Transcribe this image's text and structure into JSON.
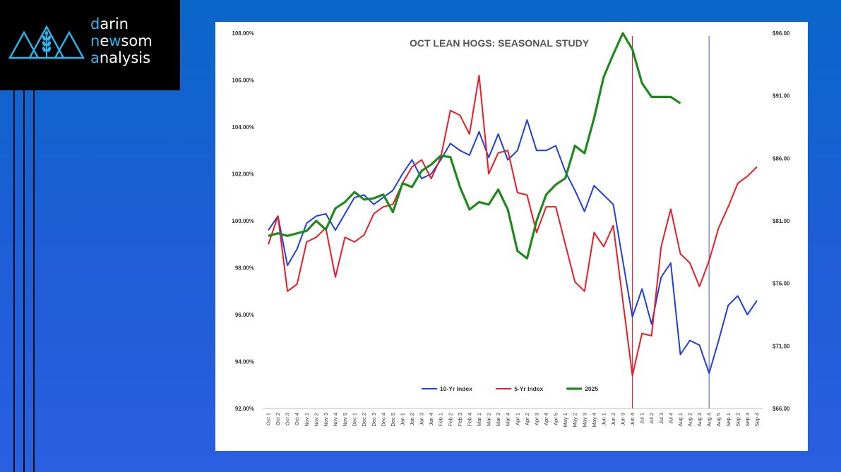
{
  "brand": {
    "line1_accent": "d",
    "line1_rest": "arin",
    "line2_accent1": "n",
    "line2_mid": "e",
    "line2_accent2": "w",
    "line2_rest": "som",
    "line3_accent": "a",
    "line3_rest": "nalysis",
    "accent_color": "#2bb7f0"
  },
  "chart_data": {
    "type": "line",
    "title": "OCT LEAN HOGS: SEASONAL STUDY",
    "xlabel": "",
    "ylabel": "",
    "ylim": [
      92,
      108
    ],
    "y2lim": [
      66,
      96
    ],
    "yticks": [
      "92.00%",
      "94.00%",
      "96.00%",
      "98.00%",
      "100.00%",
      "102.00%",
      "104.00%",
      "106.00%",
      "108.00%"
    ],
    "y2ticks": [
      "$66.00",
      "$71.00",
      "$76.00",
      "$81.00",
      "$86.00",
      "$91.00",
      "$96.00"
    ],
    "grid": false,
    "legend_position": "bottom",
    "categories": [
      "Oct 1",
      "Oct 2",
      "Oct 3",
      "Oct 4",
      "Nov 1",
      "Nov 2",
      "Nov 3",
      "Nov 4",
      "Nov 5",
      "Dec 1",
      "Dec 2",
      "Dec 3",
      "Dec 4",
      "Dec 5",
      "Jan 1",
      "Jan 2",
      "Jan 3",
      "Jan 4",
      "Feb 1",
      "Feb 2",
      "Feb 3",
      "Feb 4",
      "Mar 1",
      "Mar 2",
      "Mar 3",
      "Mar 4",
      "Apr 1",
      "Apr 2",
      "Apr 3",
      "Apr 4",
      "Apr 5",
      "May 1",
      "May 2",
      "May 3",
      "May 4",
      "Jun 1",
      "Jun 2",
      "Jun 3",
      "Jun 4",
      "Jul 1",
      "Jul 2",
      "Jul 3",
      "Jul 4",
      "Aug 1",
      "Aug 2",
      "Aug 3",
      "Aug 4",
      "Aug 5",
      "Sep 1",
      "Sep 2",
      "Sep 3",
      "Sep 4"
    ],
    "series": [
      {
        "name": "10-Yr Index",
        "axis": "left",
        "color": "#1f3fe0",
        "values": [
          99.6,
          100.2,
          98.1,
          98.8,
          99.9,
          100.2,
          100.3,
          99.6,
          100.3,
          101.0,
          101.1,
          100.7,
          101.0,
          101.3,
          102.0,
          102.6,
          101.8,
          102.0,
          102.6,
          103.3,
          103.0,
          102.8,
          103.8,
          102.7,
          103.7,
          102.6,
          103.0,
          104.3,
          103.0,
          103.0,
          103.2,
          102.1,
          101.3,
          100.4,
          101.5,
          101.1,
          100.7,
          98.3,
          95.9,
          97.1,
          95.6,
          97.6,
          98.2,
          94.3,
          94.9,
          94.7,
          93.5,
          94.9,
          96.4,
          96.8,
          96.0,
          96.6
        ]
      },
      {
        "name": "5-Yr Index",
        "axis": "left",
        "color": "#ec1c24",
        "values": [
          99.0,
          100.2,
          97.0,
          97.3,
          99.1,
          99.3,
          99.7,
          97.6,
          99.3,
          99.1,
          99.4,
          100.3,
          100.6,
          100.7,
          101.6,
          102.3,
          102.6,
          101.8,
          102.7,
          104.7,
          104.5,
          103.7,
          106.2,
          102.0,
          102.9,
          103.0,
          101.2,
          101.1,
          99.5,
          100.6,
          100.6,
          99.0,
          97.4,
          97.0,
          99.5,
          98.9,
          99.8,
          96.6,
          93.4,
          95.2,
          95.1,
          98.9,
          100.5,
          98.6,
          98.2,
          97.2,
          98.3,
          99.7,
          100.6,
          101.6,
          101.9,
          102.3
        ]
      },
      {
        "name": "2025",
        "axis": "right",
        "color": "#1e8a1e",
        "values": [
          79.8,
          80.0,
          79.8,
          80.0,
          80.2,
          81.0,
          80.3,
          82.0,
          82.5,
          83.3,
          82.7,
          82.8,
          83.1,
          81.7,
          84.0,
          83.7,
          85.0,
          85.5,
          86.2,
          86.1,
          83.7,
          81.9,
          82.5,
          82.3,
          83.5,
          81.9,
          78.6,
          78.0,
          81.0,
          83.1,
          83.9,
          84.4,
          87.0,
          86.4,
          89.2,
          92.5,
          94.3,
          96.0,
          94.7,
          92.0,
          90.9,
          90.9,
          90.9,
          90.4,
          null,
          null,
          null,
          null,
          null,
          null,
          null,
          null
        ]
      }
    ],
    "markers": [
      {
        "category": "Jun 4",
        "color": "#ec1c24"
      },
      {
        "category": "Aug 4",
        "color": "#5a78d6"
      }
    ]
  }
}
